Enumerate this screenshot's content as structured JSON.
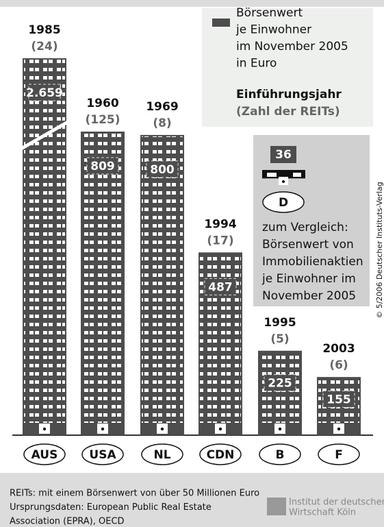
{
  "chart_data": {
    "type": "building-bar",
    "categories": [
      "AUS",
      "USA",
      "NL",
      "CDN",
      "B",
      "F"
    ],
    "values": [
      2659,
      809,
      800,
      487,
      225,
      155
    ],
    "value_labels": [
      "2.659",
      "809",
      "800",
      "487",
      "225",
      "155"
    ],
    "years": [
      "1985",
      "1960",
      "1969",
      "1994",
      "1995",
      "2003"
    ],
    "reit_counts": [
      "(24)",
      "(125)",
      "(8)",
      "(17)",
      "(5)",
      "(6)"
    ],
    "color": "#4d4d4d",
    "axis_break": true,
    "legend_text": [
      "Börsenwert",
      "je Einwohner",
      "im November 2005",
      "in Euro"
    ],
    "legend_year_label": "Einführungsjahr",
    "legend_count_label": "(Zahl der REITs)",
    "comparison": {
      "category": "D",
      "value": 36,
      "value_label": "36",
      "text": [
        "zum Vergleich:",
        "Börsenwert von",
        "Immobilienaktien",
        "je Einwohner im",
        "November 2005"
      ]
    }
  },
  "footer": {
    "notes": [
      "REITs: mit einem Börsenwert von über 50 Millionen Euro",
      "Ursprungsdaten: European Public Real Estate",
      "Association (EPRA), OECD"
    ],
    "logo": [
      "Institut der deutschen",
      "Wirtschaft Köln"
    ],
    "copyright": "© 5/2006 Deutscher Instituts-Verlag"
  }
}
